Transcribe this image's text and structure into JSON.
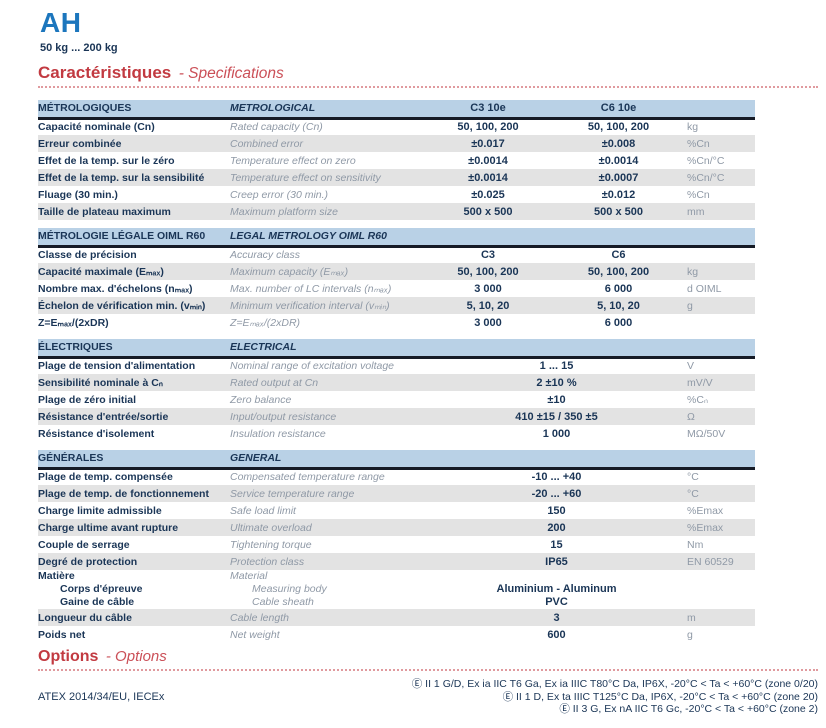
{
  "page": {
    "title": "AH",
    "range": "50 kg ... 200 kg"
  },
  "sections": {
    "specs": {
      "fr": "Caractéristiques",
      "en": "- Specifications"
    },
    "options": {
      "fr": "Options",
      "en": "- Options"
    }
  },
  "tables": [
    {
      "id": "metrological",
      "header": {
        "fr": "MÉTROLOGIQUES",
        "en": "METROLOGICAL",
        "col1": "C3 10e",
        "col2": "C6 10e"
      },
      "rows": [
        {
          "fr": "Capacité nominale (Cn)",
          "en": "Rated capacity (Cn)",
          "v1": "50, 100, 200",
          "v2": "50, 100, 200",
          "unit": "kg"
        },
        {
          "fr": "Erreur combinée",
          "en": "Combined error",
          "v1": "±0.017",
          "v2": "±0.008",
          "unit": "%Cn"
        },
        {
          "fr": "Effet de la temp. sur le zéro",
          "en": "Temperature effect on zero",
          "v1": "±0.0014",
          "v2": "±0.0014",
          "unit": "%Cn/°C"
        },
        {
          "fr": "Effet de la temp. sur la sensibilité",
          "en": "Temperature effect on sensitivity",
          "v1": "±0.0014",
          "v2": "±0.0007",
          "unit": "%Cn/°C"
        },
        {
          "fr": "Fluage (30 min.)",
          "en": "Creep error (30 min.)",
          "v1": "±0.025",
          "v2": "±0.012",
          "unit": "%Cn"
        },
        {
          "fr": "Taille de plateau maximum",
          "en": "Maximum platform size",
          "v1": "500 x 500",
          "v2": "500 x 500",
          "unit": "mm"
        }
      ]
    },
    {
      "id": "legal-metrology",
      "header": {
        "fr": "MÉTROLOGIE LÉGALE OIML R60",
        "en": "LEGAL METROLOGY OIML R60",
        "col1": "",
        "col2": ""
      },
      "rows": [
        {
          "fr": "Classe de précision",
          "en": "Accuracy class",
          "v1": "C3",
          "v2": "C6",
          "unit": ""
        },
        {
          "fr": "Capacité maximale (Eₘₐₓ)",
          "en": "Maximum capacity (Eₘₐₓ)",
          "v1": "50, 100, 200",
          "v2": "50, 100, 200",
          "unit": "kg"
        },
        {
          "fr": "Nombre max. d'échelons (nₘₐₓ)",
          "en": "Max. number of LC intervals (nₘₐₓ)",
          "v1": "3 000",
          "v2": "6 000",
          "unit": "d OIML"
        },
        {
          "fr": "Échelon de vérification min. (vₘᵢₙ)",
          "en": "Minimum verification interval (vₘᵢₙ)",
          "v1": "5, 10, 20",
          "v2": "5, 10, 20",
          "unit": "g"
        },
        {
          "fr": "Z=Eₘₐₓ/(2xDR)",
          "en": "Z=Eₘₐₓ/(2xDR)",
          "v1": "3 000",
          "v2": "6 000",
          "unit": ""
        }
      ]
    },
    {
      "id": "electrical",
      "header": {
        "fr": "ÉLECTRIQUES",
        "en": "ELECTRICAL",
        "col1": "",
        "col2": ""
      },
      "rows": [
        {
          "fr": "Plage de tension d'alimentation",
          "en": "Nominal range of excitation voltage",
          "v": "1 ... 15",
          "unit": "V"
        },
        {
          "fr": "Sensibilité nominale à Cₙ",
          "en": "Rated output at Cn",
          "v": "2 ±10 %",
          "unit": "mV/V"
        },
        {
          "fr": "Plage de zéro initial",
          "en": "Zero balance",
          "v": "±10",
          "unit": "%Cₙ"
        },
        {
          "fr": "Résistance d'entrée/sortie",
          "en": "Input/output resistance",
          "v": "410 ±15 / 350 ±5",
          "unit": "Ω"
        },
        {
          "fr": "Résistance d'isolement",
          "en": "Insulation resistance",
          "v": "1 000",
          "unit": "MΩ/50V"
        }
      ]
    },
    {
      "id": "general",
      "header": {
        "fr": "GÉNÉRALES",
        "en": "GENERAL",
        "col1": "",
        "col2": ""
      },
      "rows": [
        {
          "fr": "Plage de temp. compensée",
          "en": "Compensated temperature range",
          "v": "-10 ... +40",
          "unit": "°C"
        },
        {
          "fr": "Plage de temp. de fonctionnement",
          "en": "Service temperature range",
          "v": "-20 ... +60",
          "unit": "°C"
        },
        {
          "fr": "Charge limite admissible",
          "en": "Safe load limit",
          "v": "150",
          "unit": "%Emax"
        },
        {
          "fr": "Charge ultime avant rupture",
          "en": "Ultimate overload",
          "v": "200",
          "unit": "%Emax"
        },
        {
          "fr": "Couple de serrage",
          "en": "Tightening torque",
          "v": "15",
          "unit": "Nm"
        },
        {
          "fr": "Degré de protection",
          "en": "Protection class",
          "v": "IP65",
          "unit": "EN 60529"
        },
        {
          "fr_lines": [
            "Matière",
            "Corps d'épreuve",
            "Gaine de câble"
          ],
          "en_lines": [
            "Material",
            "Measuring body",
            "Cable sheath"
          ],
          "v_lines": [
            "",
            "Aluminium - Aluminum",
            "PVC"
          ],
          "unit": ""
        },
        {
          "fr": "Longueur du câble",
          "en": "Cable length",
          "v": "3",
          "unit": "m"
        },
        {
          "fr": "Poids net",
          "en": "Net weight",
          "v": "600",
          "unit": "g"
        }
      ]
    }
  ],
  "atex": {
    "label": "ATEX 2014/34/EU, IECEx",
    "symbol": "atex-ex-mark-icon",
    "lines": [
      "Ⓔ II 1 G/D, Ex ia IIC T6 Ga, Ex ia IIIC T80°C Da, IP6X, -20°C < Ta < +60°C (zone 0/20)",
      "Ⓔ II 1 D, Ex ta IIIC T125°C Da, IP6X, -20°C < Ta < +60°C (zone 20)",
      "Ⓔ II 3 G, Ex nA IIC T6 Gc, -20°C < Ta < +60°C (zone 2)"
    ]
  },
  "colors": {
    "brand_blue": "#1c76bd",
    "heading_red": "#c23a41",
    "table_band_blue": "#b9d1e6",
    "stripe_gray": "#e3e3e3",
    "text_navy": "#1a3556",
    "text_gray": "#8f99a6"
  }
}
